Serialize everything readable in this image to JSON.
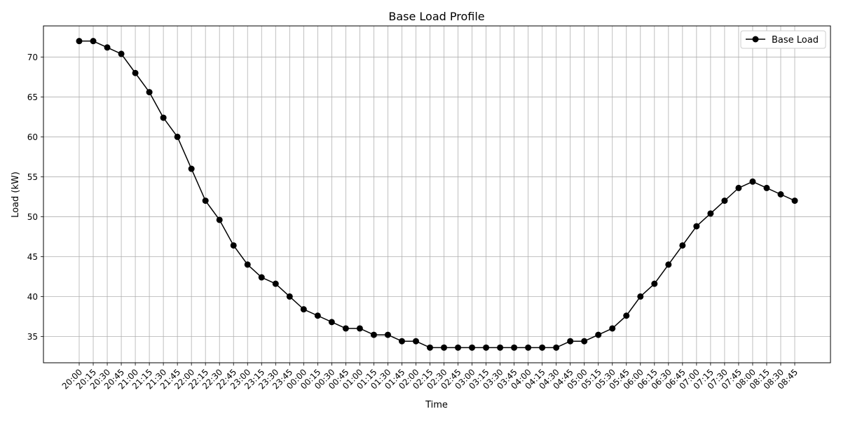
{
  "chart_data": {
    "type": "line",
    "title": "Base Load Profile",
    "xlabel": "Time",
    "ylabel": "Load (kW)",
    "ylim": [
      31.7,
      73.9
    ],
    "yticks": [
      35,
      40,
      45,
      50,
      55,
      60,
      65,
      70
    ],
    "grid": true,
    "legend_position": "top-right",
    "x": [
      "20:00",
      "20:15",
      "20:30",
      "20:45",
      "21:00",
      "21:15",
      "21:30",
      "21:45",
      "22:00",
      "22:15",
      "22:30",
      "22:45",
      "23:00",
      "23:15",
      "23:30",
      "23:45",
      "00:00",
      "00:15",
      "00:30",
      "00:45",
      "01:00",
      "01:15",
      "01:30",
      "01:45",
      "02:00",
      "02:15",
      "02:30",
      "02:45",
      "03:00",
      "03:15",
      "03:30",
      "03:45",
      "04:00",
      "04:15",
      "04:30",
      "04:45",
      "05:00",
      "05:15",
      "05:30",
      "05:45",
      "06:00",
      "06:15",
      "06:30",
      "06:45",
      "07:00",
      "07:15",
      "07:30",
      "07:45",
      "08:00",
      "08:15",
      "08:30",
      "08:45"
    ],
    "series": [
      {
        "name": "Base Load",
        "color": "#000000",
        "marker": "circle",
        "values": [
          72.0,
          72.0,
          71.2,
          70.4,
          68.0,
          65.6,
          62.4,
          60.0,
          56.0,
          52.0,
          49.6,
          46.4,
          44.0,
          42.4,
          41.6,
          40.0,
          38.4,
          37.6,
          36.8,
          36.0,
          36.0,
          35.2,
          35.2,
          34.4,
          34.4,
          33.6,
          33.6,
          33.6,
          33.6,
          33.6,
          33.6,
          33.6,
          33.6,
          33.6,
          33.6,
          34.4,
          34.4,
          35.2,
          36.0,
          37.6,
          40.0,
          41.6,
          44.0,
          46.4,
          48.8,
          50.4,
          52.0,
          53.6,
          54.4,
          53.6,
          52.8,
          52.0
        ]
      }
    ]
  }
}
